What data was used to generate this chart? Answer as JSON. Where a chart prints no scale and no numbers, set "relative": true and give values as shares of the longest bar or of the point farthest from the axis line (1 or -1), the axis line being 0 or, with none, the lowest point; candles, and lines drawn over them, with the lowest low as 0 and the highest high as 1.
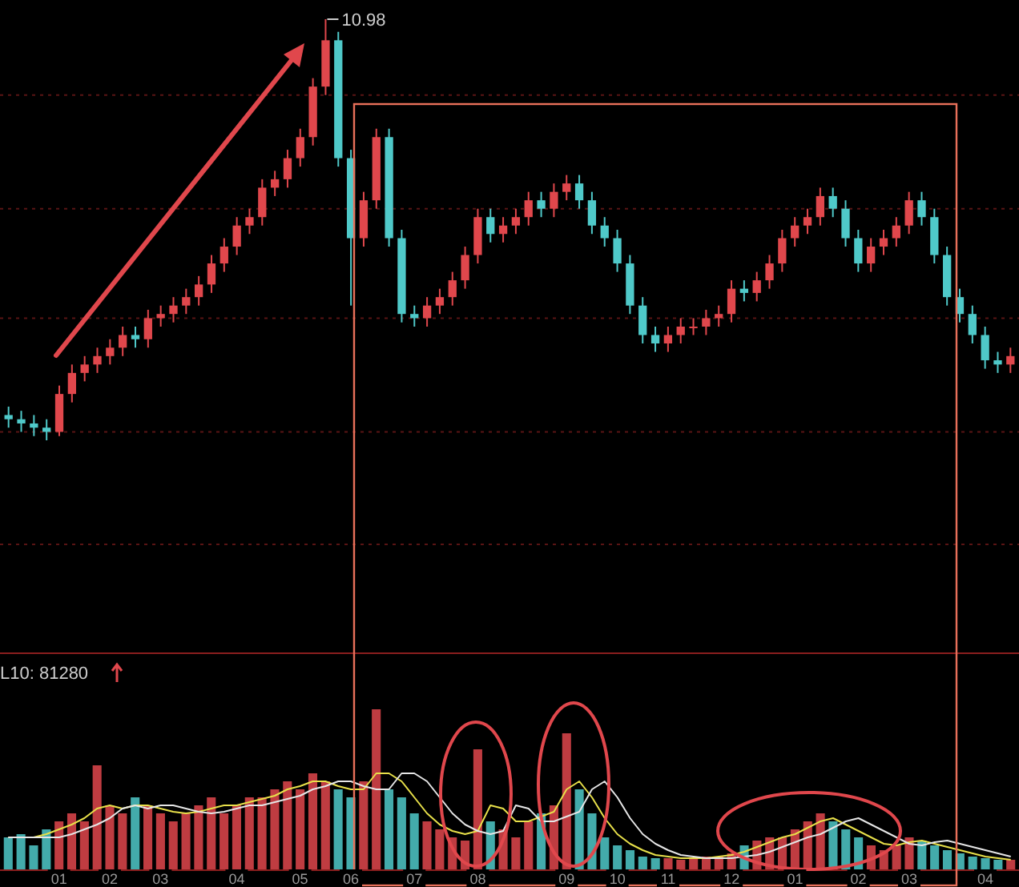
{
  "chart_data": [
    {
      "type": "candlestick",
      "relative": true,
      "legend": false,
      "categories": [
        null,
        null,
        null,
        null,
        null,
        null,
        null,
        null,
        null,
        null,
        null,
        null,
        null,
        null,
        null,
        null,
        null,
        null,
        null,
        null,
        null,
        null,
        null,
        null,
        null,
        null,
        null,
        null,
        null,
        null,
        null,
        null,
        null,
        null,
        null,
        null,
        null,
        null,
        null,
        null,
        null,
        null,
        null,
        null,
        null,
        null,
        null,
        null,
        null,
        null,
        null,
        null,
        null,
        null,
        null,
        null,
        null,
        null,
        null,
        null,
        null,
        null,
        null,
        null,
        null,
        null,
        null,
        null,
        null,
        null,
        null,
        null,
        null,
        null,
        null,
        null,
        null,
        null,
        null,
        null
      ],
      "ref_lines": [
        {
          "axis": "y",
          "value": 0.82,
          "color": "#5a1414",
          "line_style": "dashed"
        },
        {
          "axis": "y",
          "value": 0.55,
          "color": "#5a1414",
          "line_style": "dashed"
        },
        {
          "axis": "y",
          "value": 0.29,
          "color": "#5a1414",
          "line_style": "dashed"
        },
        {
          "axis": "y",
          "value": 0.02,
          "color": "#5a1414",
          "line_style": "dashed"
        }
      ],
      "ohlc": [
        [
          0.06,
          0.08,
          0.03,
          0.05
        ],
        [
          0.05,
          0.07,
          0.02,
          0.04
        ],
        [
          0.04,
          0.06,
          0.01,
          0.03
        ],
        [
          0.03,
          0.05,
          0.0,
          0.02
        ],
        [
          0.02,
          0.13,
          0.01,
          0.11
        ],
        [
          0.11,
          0.18,
          0.09,
          0.16
        ],
        [
          0.16,
          0.2,
          0.14,
          0.18
        ],
        [
          0.18,
          0.22,
          0.16,
          0.2
        ],
        [
          0.2,
          0.24,
          0.18,
          0.22
        ],
        [
          0.22,
          0.27,
          0.2,
          0.25
        ],
        [
          0.25,
          0.27,
          0.22,
          0.24
        ],
        [
          0.24,
          0.31,
          0.22,
          0.29
        ],
        [
          0.29,
          0.32,
          0.27,
          0.3
        ],
        [
          0.3,
          0.34,
          0.28,
          0.32
        ],
        [
          0.32,
          0.36,
          0.3,
          0.34
        ],
        [
          0.34,
          0.39,
          0.32,
          0.37
        ],
        [
          0.37,
          0.44,
          0.35,
          0.42
        ],
        [
          0.42,
          0.48,
          0.4,
          0.46
        ],
        [
          0.46,
          0.53,
          0.44,
          0.51
        ],
        [
          0.51,
          0.55,
          0.49,
          0.53
        ],
        [
          0.53,
          0.62,
          0.51,
          0.6
        ],
        [
          0.6,
          0.64,
          0.58,
          0.62
        ],
        [
          0.62,
          0.69,
          0.6,
          0.67
        ],
        [
          0.67,
          0.74,
          0.65,
          0.72
        ],
        [
          0.72,
          0.86,
          0.7,
          0.84
        ],
        [
          0.84,
          1.0,
          0.82,
          0.95
        ],
        [
          0.95,
          0.97,
          0.65,
          0.67
        ],
        [
          0.67,
          0.69,
          0.32,
          0.48
        ],
        [
          0.48,
          0.59,
          0.46,
          0.57
        ],
        [
          0.57,
          0.74,
          0.55,
          0.72
        ],
        [
          0.72,
          0.74,
          0.46,
          0.48
        ],
        [
          0.48,
          0.5,
          0.28,
          0.3
        ],
        [
          0.3,
          0.32,
          0.27,
          0.29
        ],
        [
          0.29,
          0.34,
          0.27,
          0.32
        ],
        [
          0.32,
          0.36,
          0.3,
          0.34
        ],
        [
          0.34,
          0.4,
          0.32,
          0.38
        ],
        [
          0.38,
          0.46,
          0.36,
          0.44
        ],
        [
          0.44,
          0.55,
          0.42,
          0.53
        ],
        [
          0.53,
          0.55,
          0.47,
          0.49
        ],
        [
          0.49,
          0.53,
          0.47,
          0.51
        ],
        [
          0.51,
          0.55,
          0.49,
          0.53
        ],
        [
          0.53,
          0.59,
          0.51,
          0.57
        ],
        [
          0.57,
          0.59,
          0.53,
          0.55
        ],
        [
          0.55,
          0.61,
          0.53,
          0.59
        ],
        [
          0.59,
          0.63,
          0.57,
          0.61
        ],
        [
          0.61,
          0.63,
          0.55,
          0.57
        ],
        [
          0.57,
          0.59,
          0.49,
          0.51
        ],
        [
          0.51,
          0.53,
          0.46,
          0.48
        ],
        [
          0.48,
          0.5,
          0.4,
          0.42
        ],
        [
          0.42,
          0.44,
          0.3,
          0.32
        ],
        [
          0.32,
          0.34,
          0.23,
          0.25
        ],
        [
          0.25,
          0.27,
          0.21,
          0.23
        ],
        [
          0.23,
          0.27,
          0.21,
          0.25
        ],
        [
          0.25,
          0.29,
          0.23,
          0.27
        ],
        [
          0.27,
          0.29,
          0.25,
          0.27
        ],
        [
          0.27,
          0.31,
          0.25,
          0.29
        ],
        [
          0.29,
          0.32,
          0.27,
          0.3
        ],
        [
          0.3,
          0.38,
          0.28,
          0.36
        ],
        [
          0.36,
          0.38,
          0.33,
          0.35
        ],
        [
          0.35,
          0.4,
          0.33,
          0.38
        ],
        [
          0.38,
          0.44,
          0.36,
          0.42
        ],
        [
          0.42,
          0.5,
          0.4,
          0.48
        ],
        [
          0.48,
          0.53,
          0.46,
          0.51
        ],
        [
          0.51,
          0.55,
          0.49,
          0.53
        ],
        [
          0.53,
          0.6,
          0.51,
          0.58
        ],
        [
          0.58,
          0.6,
          0.53,
          0.55
        ],
        [
          0.55,
          0.57,
          0.46,
          0.48
        ],
        [
          0.48,
          0.5,
          0.4,
          0.42
        ],
        [
          0.42,
          0.48,
          0.4,
          0.46
        ],
        [
          0.46,
          0.5,
          0.44,
          0.48
        ],
        [
          0.48,
          0.53,
          0.46,
          0.51
        ],
        [
          0.51,
          0.59,
          0.49,
          0.57
        ],
        [
          0.57,
          0.59,
          0.51,
          0.53
        ],
        [
          0.53,
          0.55,
          0.42,
          0.44
        ],
        [
          0.44,
          0.46,
          0.32,
          0.34
        ],
        [
          0.34,
          0.36,
          0.28,
          0.3
        ],
        [
          0.3,
          0.32,
          0.23,
          0.25
        ],
        [
          0.25,
          0.27,
          0.17,
          0.19
        ],
        [
          0.19,
          0.21,
          0.16,
          0.18
        ],
        [
          0.18,
          0.22,
          0.16,
          0.2
        ]
      ],
      "colors": [
        "#4fc9c9",
        "#4fc9c9",
        "#4fc9c9",
        "#4fc9c9",
        "#e0474c",
        "#e0474c",
        "#e0474c",
        "#e0474c",
        "#e0474c",
        "#e0474c",
        "#4fc9c9",
        "#e0474c",
        "#e0474c",
        "#e0474c",
        "#e0474c",
        "#e0474c",
        "#e0474c",
        "#e0474c",
        "#e0474c",
        "#e0474c",
        "#e0474c",
        "#e0474c",
        "#e0474c",
        "#e0474c",
        "#e0474c",
        "#e0474c",
        "#4fc9c9",
        "#4fc9c9",
        "#e0474c",
        "#e0474c",
        "#4fc9c9",
        "#4fc9c9",
        "#4fc9c9",
        "#e0474c",
        "#e0474c",
        "#e0474c",
        "#e0474c",
        "#e0474c",
        "#4fc9c9",
        "#e0474c",
        "#e0474c",
        "#e0474c",
        "#4fc9c9",
        "#e0474c",
        "#e0474c",
        "#4fc9c9",
        "#4fc9c9",
        "#4fc9c9",
        "#4fc9c9",
        "#4fc9c9",
        "#4fc9c9",
        "#4fc9c9",
        "#e0474c",
        "#e0474c",
        "#e0474c",
        "#e0474c",
        "#e0474c",
        "#e0474c",
        "#4fc9c9",
        "#e0474c",
        "#e0474c",
        "#e0474c",
        "#e0474c",
        "#e0474c",
        "#e0474c",
        "#4fc9c9",
        "#4fc9c9",
        "#4fc9c9",
        "#e0474c",
        "#e0474c",
        "#e0474c",
        "#e0474c",
        "#4fc9c9",
        "#4fc9c9",
        "#4fc9c9",
        "#4fc9c9",
        "#4fc9c9",
        "#4fc9c9",
        "#4fc9c9",
        "#e0474c"
      ],
      "annotations": [
        "10.98"
      ]
    },
    {
      "type": "bar",
      "relative": true,
      "tick_labels": "x",
      "legend": false,
      "categories": [
        null,
        null,
        null,
        null,
        "01",
        null,
        null,
        null,
        "02",
        null,
        null,
        null,
        "03",
        null,
        null,
        null,
        null,
        null,
        "04",
        null,
        null,
        null,
        null,
        "05",
        null,
        null,
        null,
        "06",
        null,
        null,
        null,
        null,
        "07",
        null,
        null,
        null,
        null,
        "08",
        null,
        null,
        null,
        null,
        null,
        null,
        "09",
        null,
        null,
        null,
        "10",
        null,
        null,
        null,
        "11",
        null,
        null,
        null,
        null,
        "12",
        null,
        null,
        null,
        null,
        "01",
        null,
        null,
        null,
        null,
        "02",
        null,
        null,
        null,
        "03",
        null,
        null,
        null,
        null,
        null,
        "04",
        null,
        null
      ],
      "annotations": [
        "L10: 81280"
      ],
      "series": [
        {
          "type": "bar",
          "colors": [
            "#4fc9c9",
            "#4fc9c9",
            "#4fc9c9",
            "#4fc9c9",
            "#e0474c",
            "#e0474c",
            "#e0474c",
            "#e0474c",
            "#e0474c",
            "#e0474c",
            "#4fc9c9",
            "#e0474c",
            "#e0474c",
            "#e0474c",
            "#e0474c",
            "#e0474c",
            "#e0474c",
            "#e0474c",
            "#e0474c",
            "#e0474c",
            "#e0474c",
            "#e0474c",
            "#e0474c",
            "#e0474c",
            "#e0474c",
            "#e0474c",
            "#4fc9c9",
            "#4fc9c9",
            "#e0474c",
            "#e0474c",
            "#4fc9c9",
            "#4fc9c9",
            "#4fc9c9",
            "#e0474c",
            "#e0474c",
            "#e0474c",
            "#e0474c",
            "#e0474c",
            "#4fc9c9",
            "#e0474c",
            "#e0474c",
            "#e0474c",
            "#4fc9c9",
            "#e0474c",
            "#e0474c",
            "#4fc9c9",
            "#4fc9c9",
            "#4fc9c9",
            "#4fc9c9",
            "#4fc9c9",
            "#4fc9c9",
            "#4fc9c9",
            "#e0474c",
            "#e0474c",
            "#e0474c",
            "#e0474c",
            "#e0474c",
            "#e0474c",
            "#4fc9c9",
            "#e0474c",
            "#e0474c",
            "#e0474c",
            "#e0474c",
            "#e0474c",
            "#e0474c",
            "#4fc9c9",
            "#4fc9c9",
            "#4fc9c9",
            "#e0474c",
            "#e0474c",
            "#e0474c",
            "#e0474c",
            "#4fc9c9",
            "#4fc9c9",
            "#4fc9c9",
            "#4fc9c9",
            "#4fc9c9",
            "#4fc9c9",
            "#4fc9c9",
            "#e0474c"
          ],
          "values": [
            0.2,
            0.22,
            0.15,
            0.25,
            0.3,
            0.35,
            0.3,
            0.65,
            0.4,
            0.35,
            0.45,
            0.4,
            0.35,
            0.3,
            0.35,
            0.4,
            0.45,
            0.35,
            0.4,
            0.45,
            0.45,
            0.5,
            0.55,
            0.5,
            0.6,
            0.55,
            0.5,
            0.45,
            0.55,
            1.0,
            0.5,
            0.45,
            0.35,
            0.3,
            0.25,
            0.2,
            0.18,
            0.75,
            0.3,
            0.25,
            0.2,
            0.3,
            0.35,
            0.4,
            0.85,
            0.5,
            0.35,
            0.2,
            0.15,
            0.12,
            0.08,
            0.07,
            0.07,
            0.06,
            0.07,
            0.08,
            0.08,
            0.1,
            0.15,
            0.18,
            0.2,
            0.2,
            0.25,
            0.3,
            0.35,
            0.3,
            0.25,
            0.2,
            0.15,
            0.12,
            0.15,
            0.2,
            0.18,
            0.15,
            0.12,
            0.1,
            0.08,
            0.07,
            0.06,
            0.06
          ]
        },
        {
          "type": "line",
          "color": "#e8e04a",
          "values": [
            0.2,
            0.2,
            0.2,
            0.22,
            0.25,
            0.28,
            0.32,
            0.38,
            0.4,
            0.38,
            0.4,
            0.4,
            0.38,
            0.36,
            0.35,
            0.36,
            0.38,
            0.4,
            0.4,
            0.42,
            0.44,
            0.46,
            0.5,
            0.52,
            0.55,
            0.55,
            0.52,
            0.5,
            0.5,
            0.6,
            0.6,
            0.55,
            0.45,
            0.35,
            0.28,
            0.24,
            0.22,
            0.24,
            0.4,
            0.38,
            0.3,
            0.3,
            0.33,
            0.36,
            0.5,
            0.55,
            0.45,
            0.32,
            0.22,
            0.16,
            0.12,
            0.09,
            0.08,
            0.07,
            0.07,
            0.07,
            0.08,
            0.09,
            0.11,
            0.14,
            0.17,
            0.2,
            0.22,
            0.26,
            0.3,
            0.32,
            0.28,
            0.24,
            0.2,
            0.16,
            0.15,
            0.17,
            0.18,
            0.16,
            0.14,
            0.12,
            0.1,
            0.08,
            0.07,
            0.06
          ]
        },
        {
          "type": "line",
          "color": "#e6e6e6",
          "values": [
            0.2,
            0.2,
            0.2,
            0.2,
            0.2,
            0.22,
            0.25,
            0.28,
            0.32,
            0.38,
            0.4,
            0.38,
            0.4,
            0.4,
            0.38,
            0.36,
            0.35,
            0.36,
            0.38,
            0.4,
            0.4,
            0.42,
            0.44,
            0.46,
            0.5,
            0.52,
            0.55,
            0.55,
            0.52,
            0.5,
            0.5,
            0.6,
            0.6,
            0.55,
            0.45,
            0.35,
            0.28,
            0.24,
            0.22,
            0.24,
            0.4,
            0.38,
            0.3,
            0.3,
            0.33,
            0.36,
            0.5,
            0.55,
            0.45,
            0.32,
            0.22,
            0.16,
            0.12,
            0.09,
            0.08,
            0.07,
            0.07,
            0.07,
            0.08,
            0.09,
            0.11,
            0.14,
            0.17,
            0.2,
            0.22,
            0.26,
            0.3,
            0.32,
            0.28,
            0.24,
            0.2,
            0.16,
            0.15,
            0.17,
            0.18,
            0.16,
            0.14,
            0.12,
            0.1,
            0.08
          ]
        }
      ]
    }
  ]
}
